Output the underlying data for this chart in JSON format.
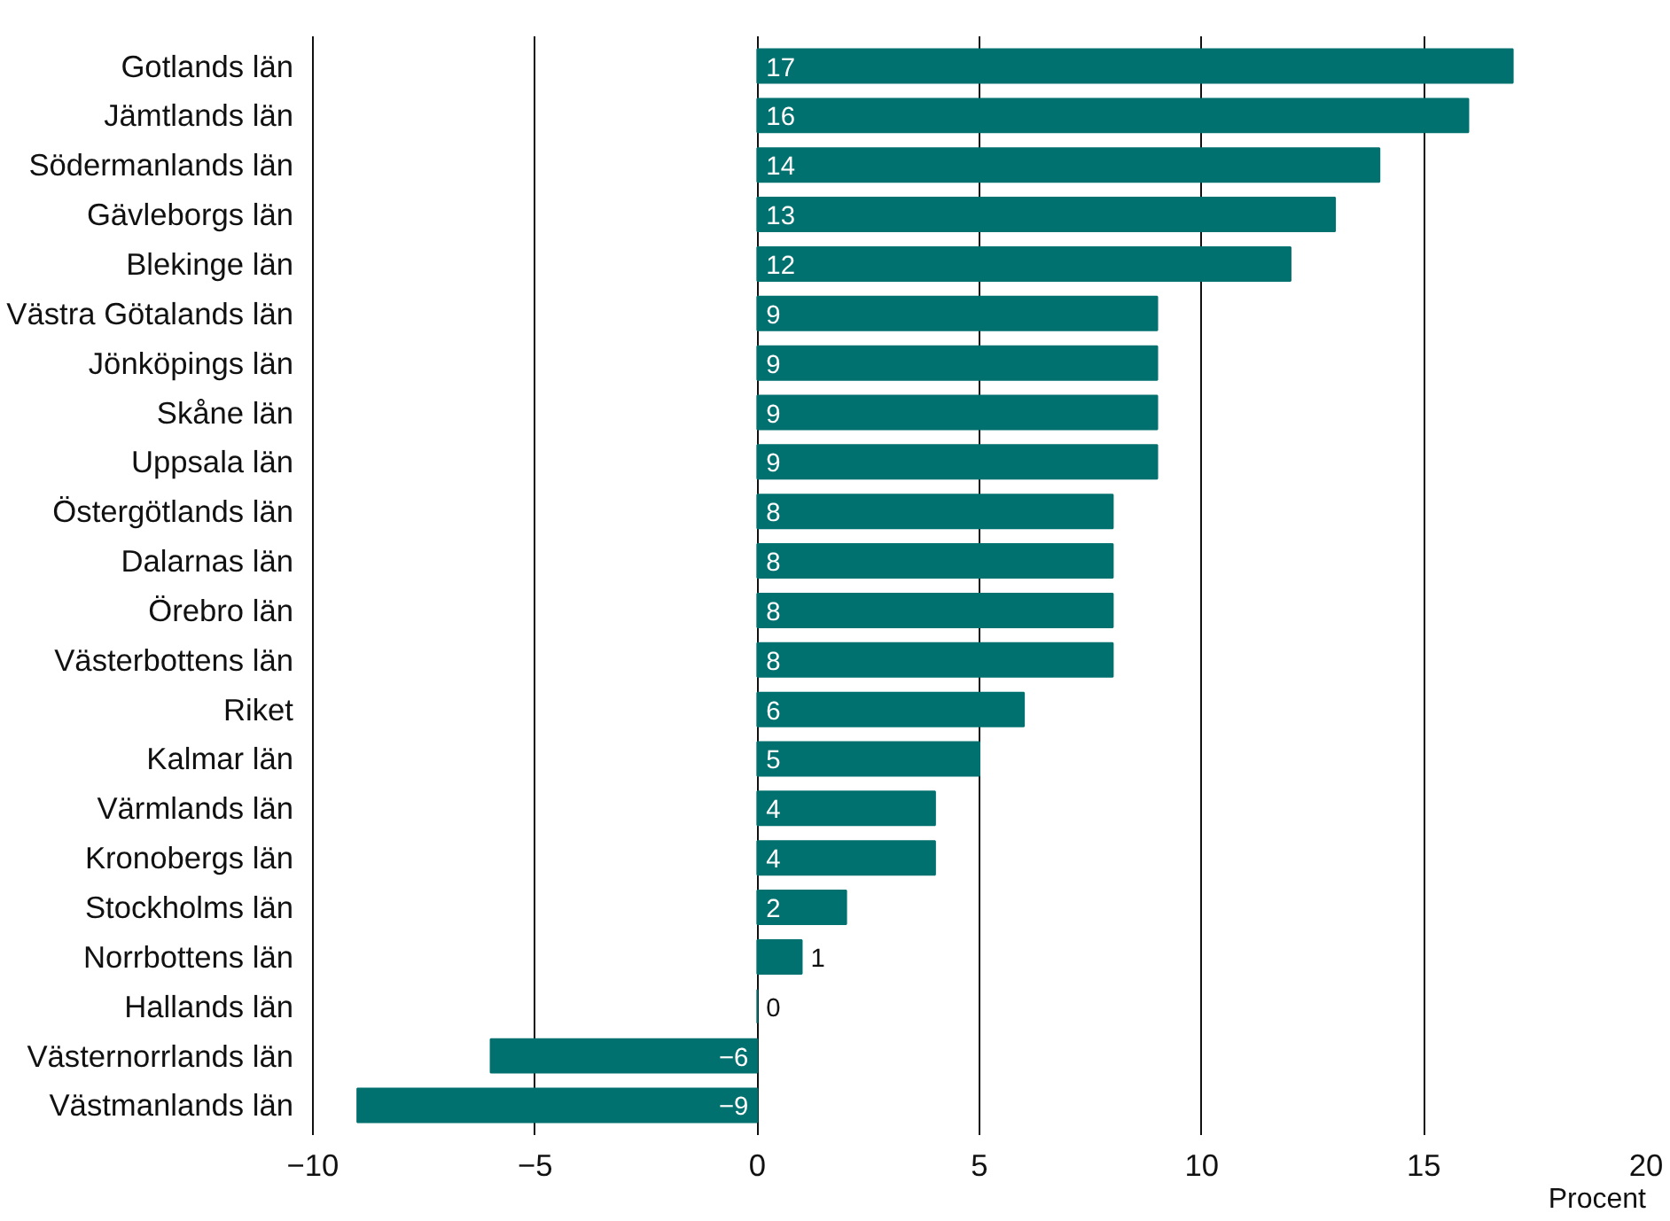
{
  "chart_data": {
    "type": "bar",
    "orientation": "horizontal",
    "xlabel": "Procent",
    "categories": [
      "Gotlands län",
      "Jämtlands län",
      "Södermanlands län",
      "Gävleborgs län",
      "Blekinge län",
      "Västra Götalands län",
      "Jönköpings län",
      "Skåne län",
      "Uppsala län",
      "Östergötlands län",
      "Dalarnas län",
      "Örebro län",
      "Västerbottens län",
      "Riket",
      "Kalmar län",
      "Värmlands län",
      "Kronobergs län",
      "Stockholms län",
      "Norrbottens län",
      "Hallands län",
      "Västernorrlands län",
      "Västmanlands län"
    ],
    "values": [
      17,
      16,
      14,
      13,
      12,
      9,
      9,
      9,
      9,
      8,
      8,
      8,
      8,
      6,
      5,
      4,
      4,
      2,
      1,
      0,
      -6,
      -9
    ],
    "value_labels": [
      "17",
      "16",
      "14",
      "13",
      "12",
      "9",
      "9",
      "9",
      "9",
      "8",
      "8",
      "8",
      "8",
      "6",
      "5",
      "4",
      "4",
      "2",
      "1",
      "0",
      "−6",
      "−9"
    ],
    "color": "#00716f",
    "xlim": [
      -10,
      20
    ],
    "xticks": [
      -10,
      -5,
      0,
      5,
      10,
      15,
      20
    ],
    "grid": "x"
  }
}
